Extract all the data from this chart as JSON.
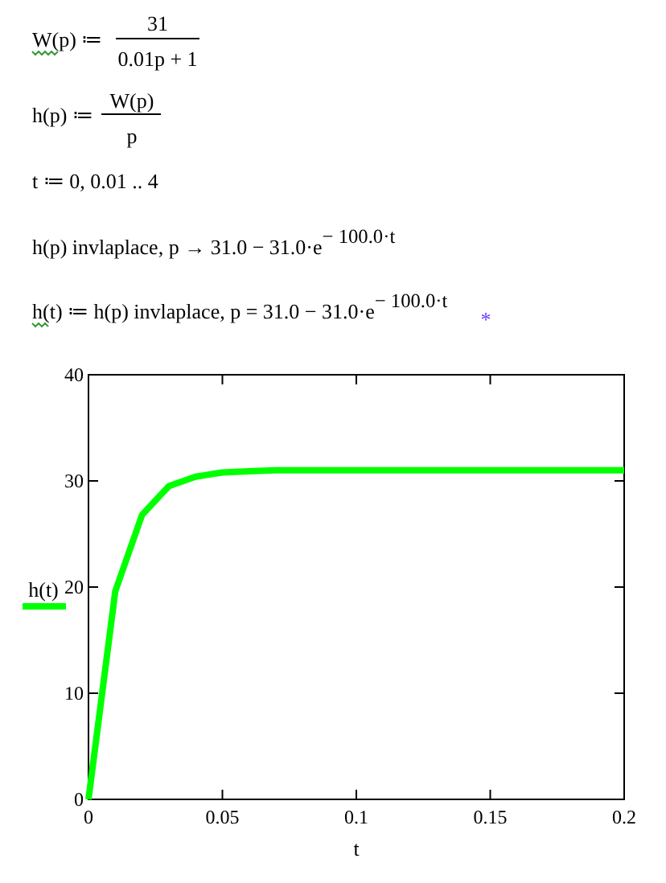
{
  "chart_data": {
    "type": "line",
    "annotations": [
      "W(p) ≔",
      "31",
      "0.01p + 1",
      "h(p) ≔",
      "W(p)",
      "p",
      "t ≔ 0, 0.01 .. 4",
      "h(p) invlaplace, p  →  31.0 − 31.0·e$^{− 100.0·t}$",
      "h(t) ≔ h(p) invlaplace, p   =  31.0 − 31.0·e$^{− 100.0·t}$",
      "*"
    ],
    "xlabel": "t",
    "ylabel": "h(t)",
    "x": [
      0,
      0.01,
      0.02,
      0.03,
      0.04,
      0.05,
      0.06,
      0.07,
      0.08,
      0.09,
      0.1,
      0.11,
      0.12,
      0.13,
      0.14,
      0.15,
      0.16,
      0.17,
      0.18,
      0.19,
      0.2
    ],
    "series": [
      {
        "color": "#00ff00",
        "values": [
          0,
          19.6,
          26.8,
          29.5,
          30.4,
          30.8,
          30.9,
          31.0,
          31.0,
          31.0,
          31.0,
          31.0,
          31.0,
          31.0,
          31.0,
          31.0,
          31.0,
          31.0,
          31.0,
          31.0,
          31.0
        ]
      }
    ],
    "xlim": [
      0,
      0.2
    ],
    "xticks": [
      0,
      0.05,
      0.1,
      0.15,
      0.2
    ],
    "ylim": [
      0,
      40
    ],
    "yticks": [
      0,
      10,
      20,
      30,
      40
    ],
    "grid": false,
    "marker": "none",
    "line_style": "solid"
  }
}
